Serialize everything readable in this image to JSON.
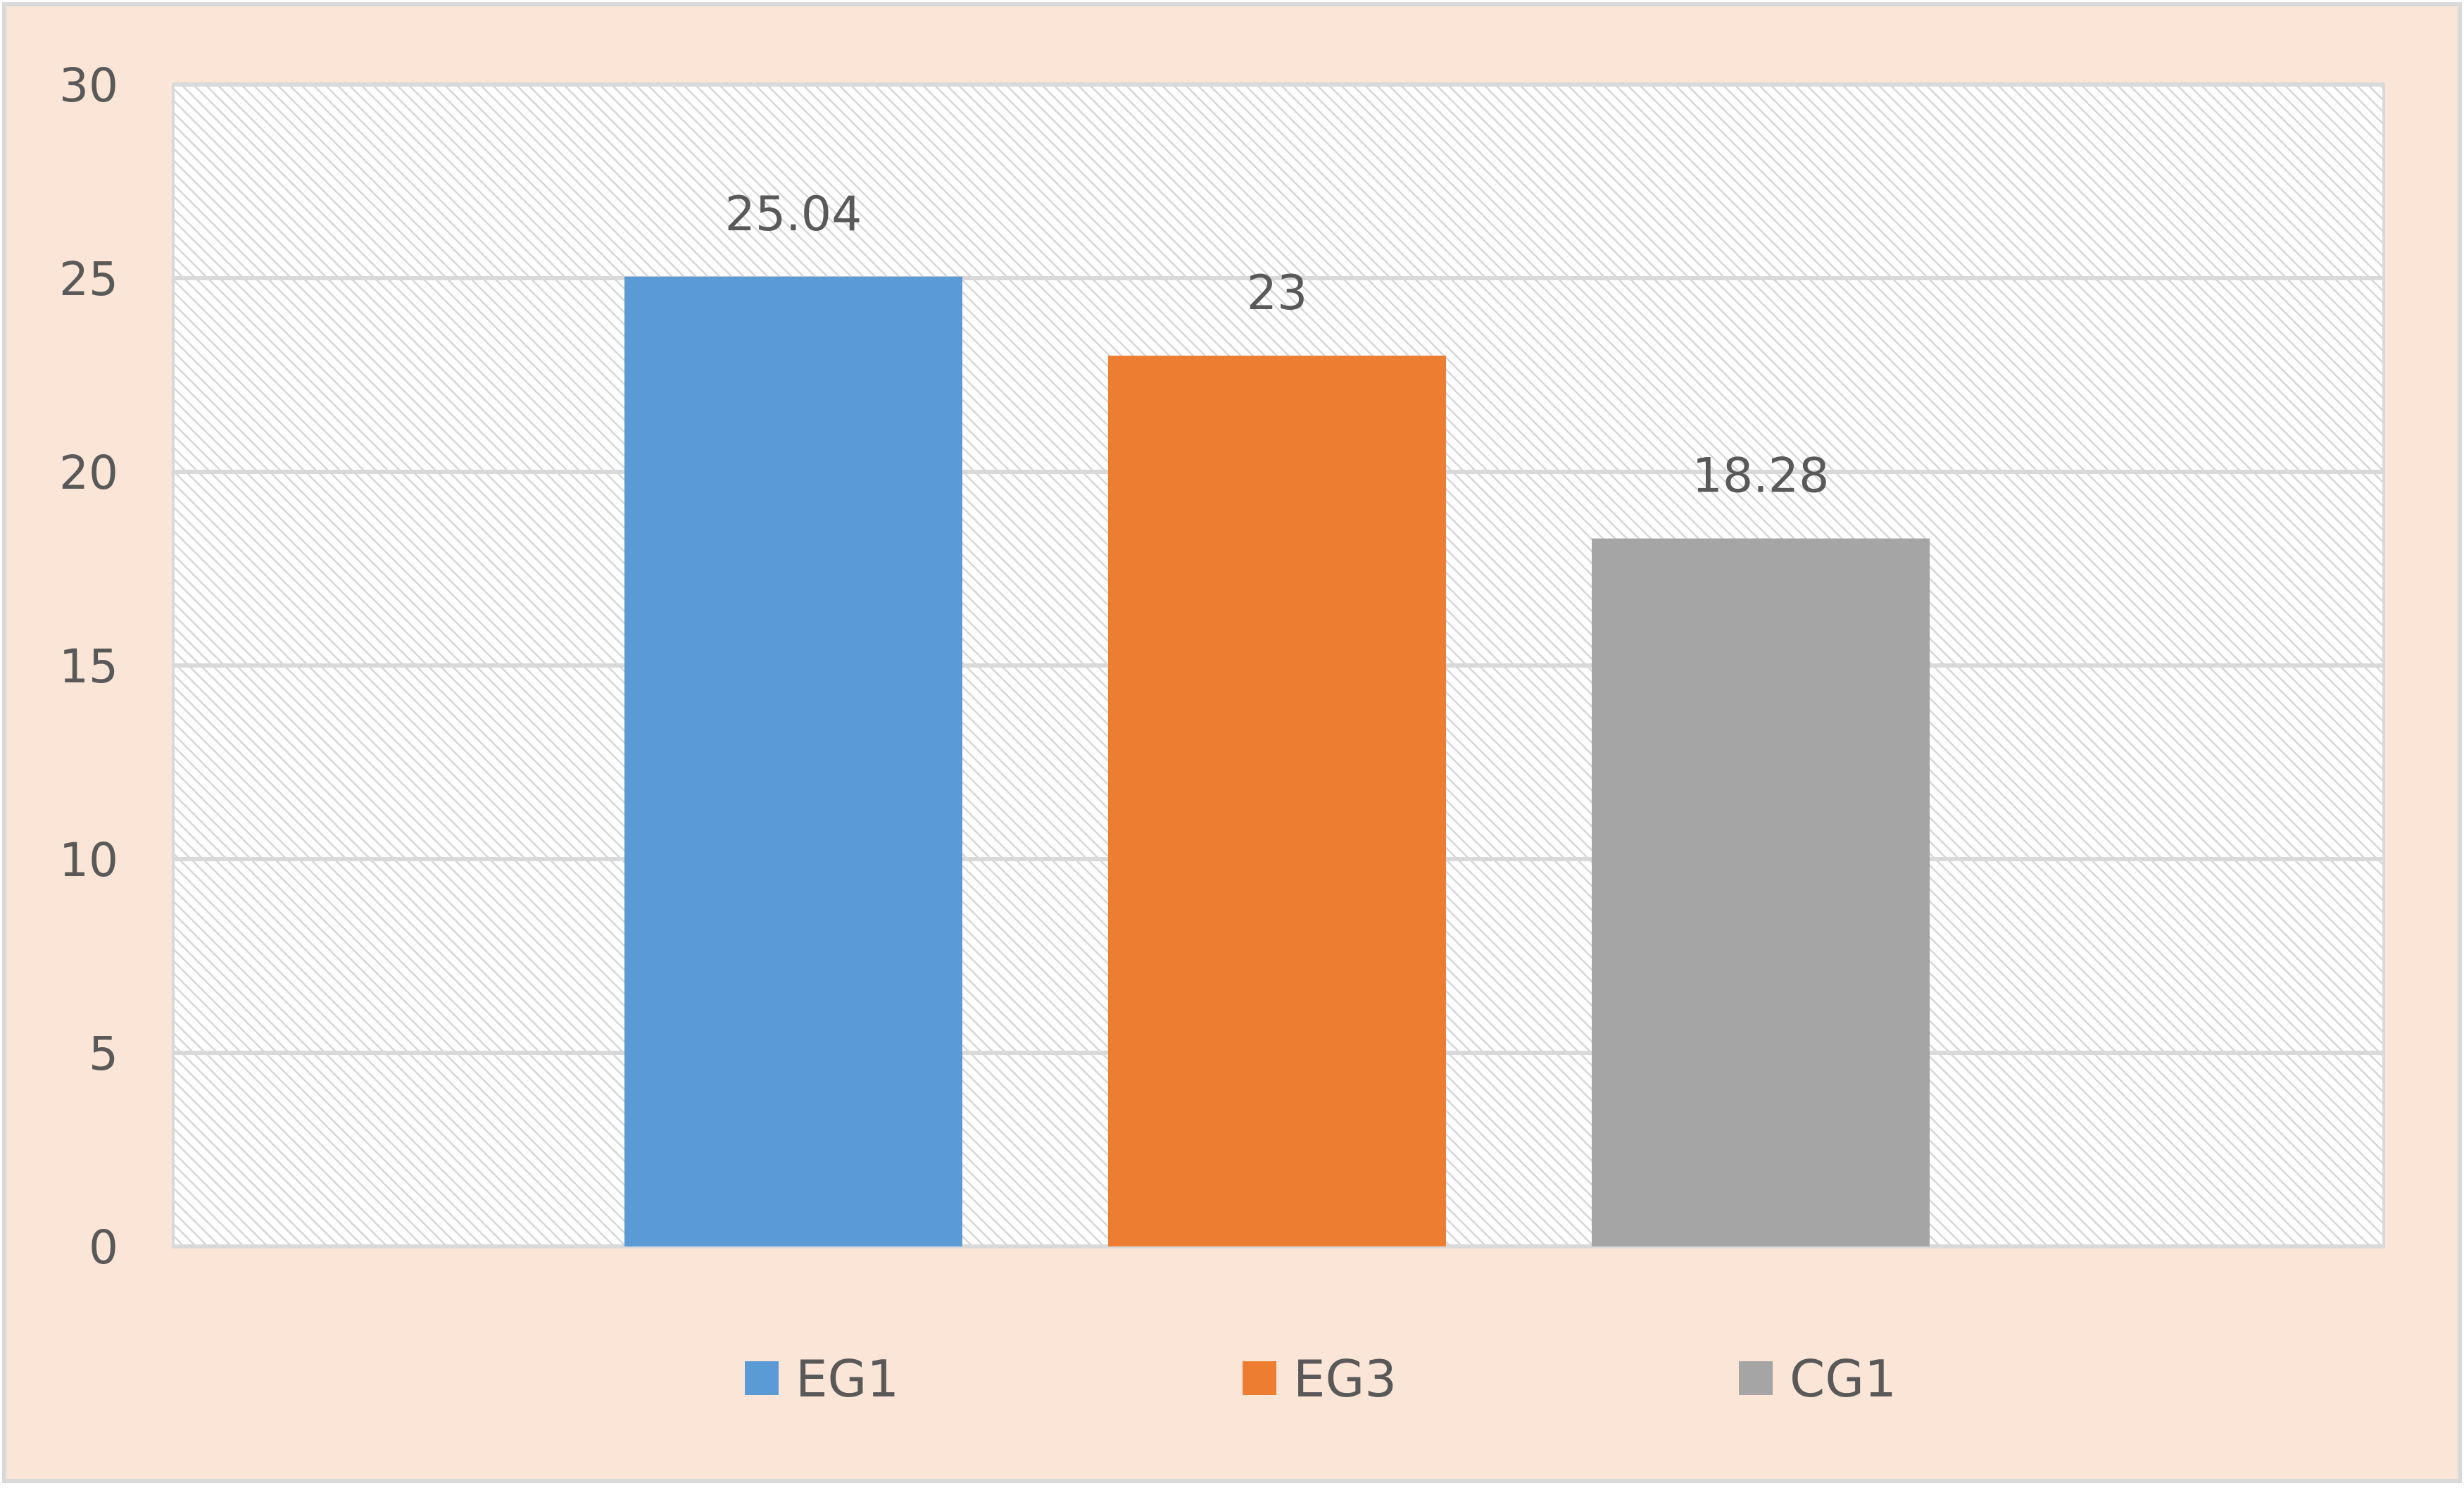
{
  "chart_data": {
    "type": "bar",
    "title": "",
    "xlabel": "",
    "ylabel": "",
    "ylim": [
      0,
      30
    ],
    "yticks": [
      0,
      5,
      10,
      15,
      20,
      25,
      30
    ],
    "grid": true,
    "legend_position": "bottom",
    "series": [
      {
        "name": "EG1",
        "value": 25.04,
        "label": "25.04",
        "color": "#5B9BD5"
      },
      {
        "name": "EG3",
        "value": 23,
        "label": "23",
        "color": "#ED7D31"
      },
      {
        "name": "CG1",
        "value": 18.28,
        "label": "18.28",
        "color": "#A5A5A5"
      }
    ]
  },
  "colors": {
    "chart_background": "#FBE5D6",
    "plot_area_hatch": "#D9D9D9",
    "gridline": "#D9D9D9",
    "text": "#595959"
  }
}
